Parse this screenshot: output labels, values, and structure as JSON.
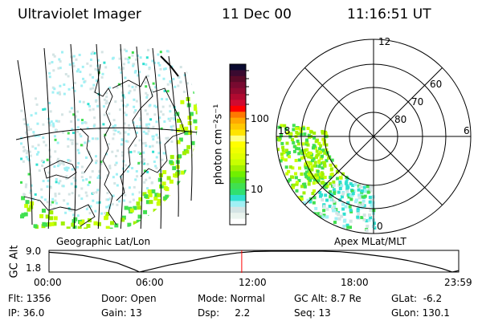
{
  "header": {
    "instrument": "Ultraviolet Imager",
    "date": "11 Dec 00",
    "time": "11:16:51 UT"
  },
  "geo_map": {
    "label": "Geographic Lat/Lon"
  },
  "polar_map": {
    "label": "Apex MLat/MLT",
    "mlt_labels": [
      "12",
      "18",
      "6",
      "0"
    ],
    "lat_labels": [
      "60",
      "70",
      "80"
    ]
  },
  "colorbar": {
    "label": "photon cm⁻²s⁻¹",
    "ticks": [
      "100",
      "10"
    ],
    "colors": [
      "#0a0a30",
      "#3a0a30",
      "#5a0a28",
      "#780a30",
      "#900a30",
      "#b00a30",
      "#d00a30",
      "#ff0000",
      "#ff7800",
      "#ffa800",
      "#ffc800",
      "#ffe400",
      "#ffff80",
      "#ffff00",
      "#f0ff00",
      "#e0ff00",
      "#c8ff00",
      "#a0f000",
      "#70f000",
      "#50e020",
      "#40e050",
      "#30e070",
      "#30e0d0",
      "#a0f0f4",
      "#d4e4e4",
      "#eaf4ee",
      "#ffffff"
    ]
  },
  "chart_data": {
    "type": "line",
    "ylabel": "GC Alt",
    "y_ticks": [
      "9.0",
      "1.8"
    ],
    "ylim": [
      1.8,
      9.0
    ],
    "x_ticks": [
      "00:00",
      "06:00",
      "12:00",
      "18:00",
      "23:59"
    ],
    "xlim_hours": [
      0,
      23.98
    ],
    "current_time_hours": 11.28,
    "current_time_color": "#ff0000",
    "series": [
      {
        "x": [
          0,
          1,
          2,
          3,
          4,
          5,
          5.3,
          6,
          7,
          8,
          9,
          10,
          11,
          12,
          13,
          14,
          15,
          16,
          17,
          18,
          19,
          20,
          21,
          22,
          23,
          23.6,
          23.98
        ],
        "y": [
          8.6,
          8.2,
          7.5,
          6.4,
          4.9,
          2.6,
          1.8,
          2.8,
          4.2,
          5.3,
          6.5,
          7.6,
          8.4,
          8.9,
          9.0,
          9.0,
          9.0,
          9.0,
          8.8,
          8.3,
          7.6,
          6.8,
          5.8,
          4.5,
          3.0,
          1.8,
          2.3
        ]
      }
    ]
  },
  "status": {
    "row1": [
      "Flt: 1356",
      "Door: Open",
      "Mode: Normal",
      "GC Alt: 8.7 Re",
      "GLat:  -6.2"
    ],
    "row2": [
      "IP: 36.0",
      "Gain: 13",
      "Dsp:     2.2",
      "Seq: 13",
      "GLon: 130.1"
    ]
  }
}
